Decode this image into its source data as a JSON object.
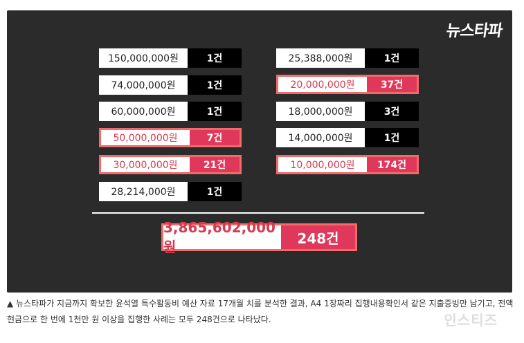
{
  "logo": "뉴스타파",
  "left_column": [
    {
      "amount": "150,000,000원",
      "count": "1건",
      "highlight": false
    },
    {
      "amount": "74,000,000원",
      "count": "1건",
      "highlight": false
    },
    {
      "amount": "60,000,000원",
      "count": "1건",
      "highlight": false
    },
    {
      "amount": "50,000,000원",
      "count": "7건",
      "highlight": true
    },
    {
      "amount": "30,000,000원",
      "count": "21건",
      "highlight": true
    },
    {
      "amount": "28,214,000원",
      "count": "1건",
      "highlight": false
    }
  ],
  "right_column": [
    {
      "amount": "25,388,000원",
      "count": "1건",
      "highlight": false
    },
    {
      "amount": "20,000,000원",
      "count": "37건",
      "highlight": true
    },
    {
      "amount": "18,000,000원",
      "count": "3건",
      "highlight": false
    },
    {
      "amount": "14,000,000원",
      "count": "1건",
      "highlight": false
    },
    {
      "amount": "10,000,000원",
      "count": "174건",
      "highlight": true
    }
  ],
  "total": {
    "amount": "3,865,602,000원",
    "count": "248건"
  },
  "caption": "▲ 뉴스타파가 지금까지 확보한 윤석열 특수활동비 예산 자료 17개월 치를 분석한 결과, A4 1장짜리 집행내용확인서 같은 지출증빙만 남기고, 전액 현금으로 한 번에 1천만 원 이상을 집행한 사례는 모두 248건으로 나타났다.",
  "watermark": "인스티즈"
}
